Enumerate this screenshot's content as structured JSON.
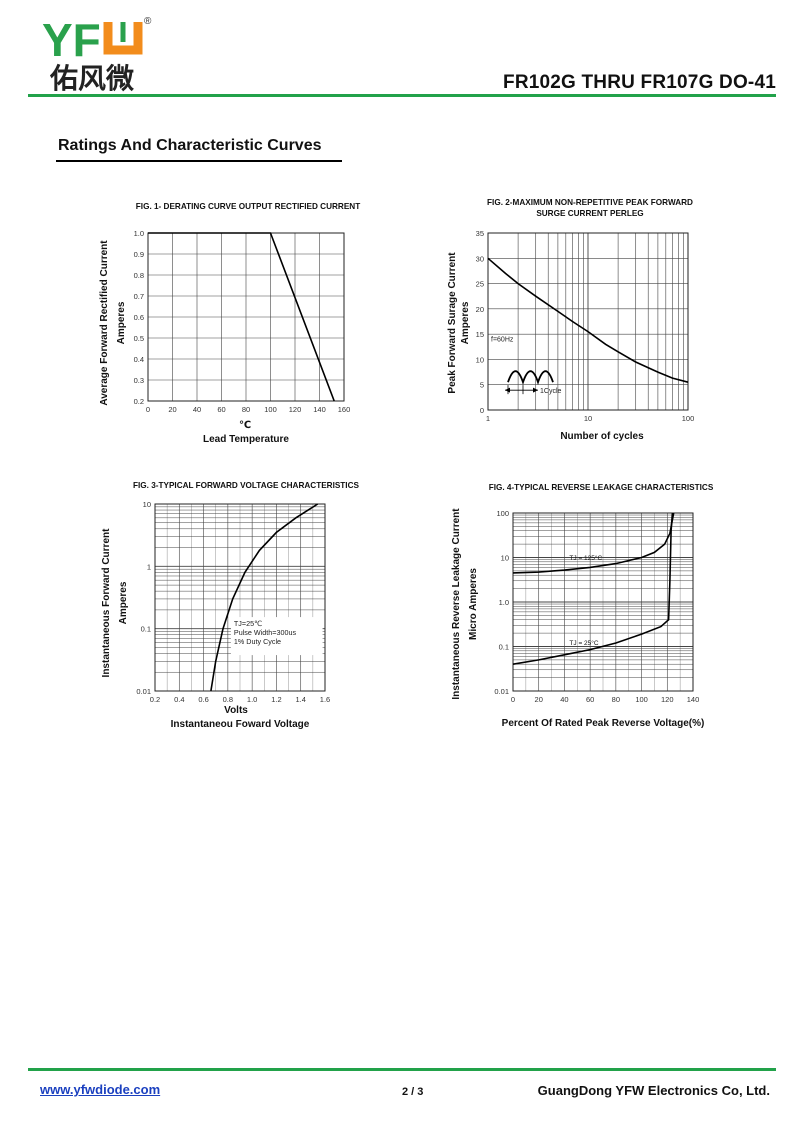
{
  "header": {
    "logo_text": "YFW",
    "logo_chinese": "佑风微",
    "logo_mark": "®",
    "doc_title": "FR102G  THRU FR107G DO-41",
    "brand_color": "#22a24a",
    "logo_green": "#2aa14c",
    "logo_orange": "#f28c1c"
  },
  "section_title": "Ratings And  Characteristic Curves",
  "footer": {
    "url": "www.yfwdiode.com",
    "page": "2 / 3",
    "company": "GuangDong YFW Electronics Co, Ltd."
  },
  "chart_data": [
    {
      "type": "line",
      "title": "FIG. 1- DERATING CURVE OUTPUT RECTIFIED CURRENT",
      "xlabel": "Lead Temperature",
      "xunit": "℃",
      "ylabel": [
        "Average Forward Rectified Current",
        "Amperes"
      ],
      "xlim": [
        0,
        160
      ],
      "ylim": [
        0.2,
        1.0
      ],
      "xticks": [
        "0",
        "20",
        "40",
        "60",
        "80",
        "100",
        "120",
        "140",
        "160"
      ],
      "yticks": [
        "1.0",
        "0.9",
        "0.8",
        "0.7",
        "0.6",
        "0.5",
        "0.4",
        "0.3",
        "0.2"
      ],
      "grid": true,
      "x": [
        0,
        100,
        152
      ],
      "y": [
        1.0,
        1.0,
        0.2
      ]
    },
    {
      "type": "line",
      "title": [
        "FIG. 2-MAXIMUM NON-REPETITIVE PEAK FORWARD",
        "SURGE CURRENT PERLEG"
      ],
      "xlabel": "Number of cycles",
      "ylabel": [
        "Peak Forward Surage Current",
        "Amperes"
      ],
      "xscale": "log",
      "xlim": [
        1,
        100
      ],
      "ylim": [
        0,
        35
      ],
      "xticks": [
        "1",
        "10",
        "100"
      ],
      "yticks": [
        "35",
        "30",
        "25",
        "20",
        "15",
        "10",
        "5",
        "0"
      ],
      "grid": true,
      "annotations": [
        "f=60Hz",
        "1Cycle"
      ],
      "x": [
        1,
        1.5,
        2,
        3,
        5,
        7,
        10,
        15,
        20,
        30,
        50,
        70,
        100
      ],
      "y": [
        30,
        27,
        25,
        22.5,
        19.5,
        17.5,
        15.5,
        13,
        11.5,
        9.5,
        7.5,
        6.3,
        5.5
      ]
    },
    {
      "type": "line",
      "title": "FIG. 3-TYPICAL FORWARD VOLTAGE CHARACTERISTICS",
      "xlabel": [
        "Volts",
        "Instantaneou Foward Voltage"
      ],
      "ylabel": [
        "Instantaneous Forward Current",
        "Amperes"
      ],
      "yscale": "log",
      "xlim": [
        0.2,
        1.6
      ],
      "ylim": [
        0.01,
        10
      ],
      "xticks": [
        "0.2",
        "0.4",
        "0.6",
        "0.8",
        "1.0",
        "1.2",
        "1.4",
        "1.6"
      ],
      "yticks": [
        "10",
        "1",
        "0.1",
        "0.01"
      ],
      "grid": true,
      "annotations": [
        "TJ=25℃",
        "Pulse Width=300us",
        "1% Duty Cycle"
      ],
      "x": [
        0.66,
        0.7,
        0.76,
        0.84,
        0.94,
        1.06,
        1.2,
        1.36,
        1.54
      ],
      "y": [
        0.01,
        0.03,
        0.1,
        0.3,
        0.8,
        1.8,
        3.5,
        6,
        10
      ]
    },
    {
      "type": "line",
      "title": "FIG. 4-TYPICAL REVERSE LEAKAGE CHARACTERISTICS",
      "xlabel": "Percent Of Rated Peak Reverse Voltage(%)",
      "ylabel": [
        "Instantaneous Reverse Leakage Current",
        "Micro Amperes"
      ],
      "yscale": "log",
      "xlim": [
        0,
        140
      ],
      "ylim": [
        0.01,
        100
      ],
      "xticks": [
        "0",
        "20",
        "40",
        "60",
        "80",
        "100",
        "120",
        "140"
      ],
      "yticks": [
        "100",
        "10",
        "1.0",
        "0.1",
        "0.01"
      ],
      "grid": true,
      "series": [
        {
          "name": "TJ = 125°C",
          "x": [
            0,
            20,
            40,
            60,
            80,
            100,
            110,
            118,
            122,
            124,
            125
          ],
          "y": [
            4.5,
            4.7,
            5.2,
            6.0,
            7.3,
            10,
            13,
            20,
            35,
            70,
            100
          ]
        },
        {
          "name": "TJ = 25°C",
          "x": [
            0,
            20,
            40,
            60,
            80,
            100,
            115,
            121,
            122,
            123,
            124
          ],
          "y": [
            0.04,
            0.05,
            0.065,
            0.085,
            0.12,
            0.19,
            0.28,
            0.4,
            3,
            40,
            100
          ]
        }
      ]
    }
  ]
}
